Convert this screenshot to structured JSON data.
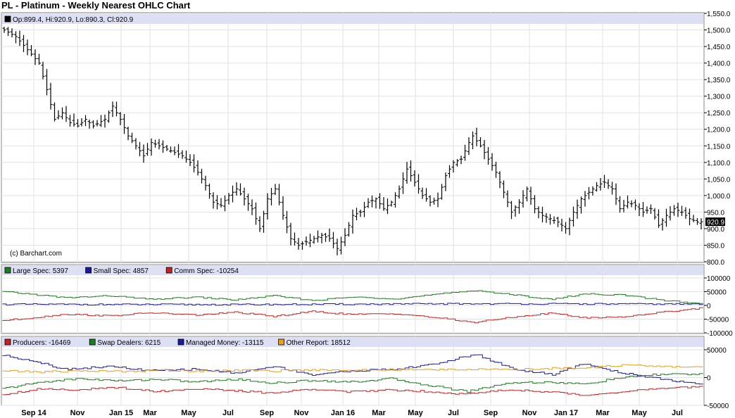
{
  "title": "PL - Platinum - Weekly Nearest OHLC Chart",
  "copyright": "(c) Barchart.com",
  "colors": {
    "price": "#000000",
    "large_spec": "#1e7d1e",
    "small_spec": "#1a1a9a",
    "comm_spec": "#cc1f1f",
    "producers": "#cc1f1f",
    "swap_dealers": "#1e7d1e",
    "managed_money": "#1a1a9a",
    "other_report": "#e8a020",
    "legend_bg": "#dde0f5"
  },
  "chart_data": [
    {
      "type": "ohlc",
      "panel": "price",
      "legend": "Op:899.4, Hi:920.9, Lo:890.3, Cl:920.9",
      "last_value_label": "920.9",
      "ylim": [
        800,
        1550
      ],
      "yticks": [
        "1,550.0",
        "1,500.0",
        "1,450.0",
        "1,400.0",
        "1,350.0",
        "1,300.0",
        "1,250.0",
        "1,200.0",
        "1,150.0",
        "1,100.0",
        "1,050.0",
        "1,000.0",
        "950.0",
        "900.0",
        "850.0",
        "800.0"
      ],
      "x_labels": [
        "Sep 14",
        "Nov",
        "Jan 15",
        "Mar",
        "May",
        "Jul",
        "Sep",
        "Nov",
        "Jan 16",
        "Mar",
        "May",
        "Jul",
        "Sep",
        "Nov",
        "Jan 17",
        "Mar",
        "May",
        "Jul"
      ],
      "close_anchors": [
        [
          0,
          1500
        ],
        [
          3,
          1480
        ],
        [
          6,
          1440
        ],
        [
          9,
          1400
        ],
        [
          11,
          1320
        ],
        [
          13,
          1230
        ],
        [
          15,
          1250
        ],
        [
          17,
          1220
        ],
        [
          19,
          1210
        ],
        [
          21,
          1230
        ],
        [
          23,
          1210
        ],
        [
          26,
          1230
        ],
        [
          28,
          1270
        ],
        [
          30,
          1230
        ],
        [
          32,
          1180
        ],
        [
          34,
          1150
        ],
        [
          36,
          1120
        ],
        [
          38,
          1160
        ],
        [
          40,
          1150
        ],
        [
          42,
          1140
        ],
        [
          44,
          1130
        ],
        [
          46,
          1120
        ],
        [
          48,
          1100
        ],
        [
          50,
          1070
        ],
        [
          52,
          1030
        ],
        [
          54,
          980
        ],
        [
          56,
          970
        ],
        [
          58,
          1000
        ],
        [
          60,
          1020
        ],
        [
          62,
          990
        ],
        [
          64,
          960
        ],
        [
          66,
          900
        ],
        [
          68,
          990
        ],
        [
          70,
          1020
        ],
        [
          72,
          940
        ],
        [
          74,
          870
        ],
        [
          76,
          850
        ],
        [
          78,
          860
        ],
        [
          80,
          870
        ],
        [
          82,
          880
        ],
        [
          84,
          870
        ],
        [
          86,
          840
        ],
        [
          88,
          880
        ],
        [
          90,
          940
        ],
        [
          92,
          950
        ],
        [
          94,
          980
        ],
        [
          96,
          990
        ],
        [
          98,
          960
        ],
        [
          100,
          980
        ],
        [
          102,
          1020
        ],
        [
          104,
          1080
        ],
        [
          106,
          1040
        ],
        [
          108,
          1000
        ],
        [
          110,
          980
        ],
        [
          112,
          990
        ],
        [
          114,
          1060
        ],
        [
          116,
          1100
        ],
        [
          118,
          1110
        ],
        [
          120,
          1160
        ],
        [
          121,
          1180
        ],
        [
          123,
          1150
        ],
        [
          125,
          1110
        ],
        [
          127,
          1070
        ],
        [
          129,
          1010
        ],
        [
          131,
          950
        ],
        [
          133,
          980
        ],
        [
          135,
          1020
        ],
        [
          137,
          960
        ],
        [
          139,
          940
        ],
        [
          141,
          930
        ],
        [
          143,
          920
        ],
        [
          145,
          900
        ],
        [
          147,
          950
        ],
        [
          149,
          990
        ],
        [
          151,
          1010
        ],
        [
          153,
          1030
        ],
        [
          155,
          1040
        ],
        [
          157,
          1020
        ],
        [
          159,
          960
        ],
        [
          161,
          980
        ],
        [
          163,
          970
        ],
        [
          165,
          950
        ],
        [
          167,
          960
        ],
        [
          169,
          910
        ],
        [
          171,
          940
        ],
        [
          173,
          960
        ],
        [
          175,
          950
        ],
        [
          177,
          930
        ],
        [
          179,
          920
        ],
        [
          180,
          920.9
        ]
      ],
      "n_bars": 181
    },
    {
      "type": "line",
      "panel": "cot-specs",
      "ylim": [
        -100000,
        100000
      ],
      "yticks": [
        "100000",
        "50000",
        "0",
        "-50000",
        "-100000"
      ],
      "series": [
        {
          "name": "Large Spec",
          "last_value": "5397",
          "anchors": [
            [
              0,
              50000
            ],
            [
              8,
              40000
            ],
            [
              16,
              28000
            ],
            [
              28,
              35000
            ],
            [
              38,
              22000
            ],
            [
              50,
              30000
            ],
            [
              60,
              20000
            ],
            [
              70,
              35000
            ],
            [
              80,
              18000
            ],
            [
              90,
              30000
            ],
            [
              102,
              25000
            ],
            [
              112,
              40000
            ],
            [
              122,
              55000
            ],
            [
              132,
              38000
            ],
            [
              142,
              22000
            ],
            [
              150,
              42000
            ],
            [
              160,
              38000
            ],
            [
              170,
              20000
            ],
            [
              180,
              5397
            ]
          ]
        },
        {
          "name": "Small Spec",
          "last_value": "4857",
          "anchors": [
            [
              0,
              4000
            ],
            [
              60,
              3000
            ],
            [
              120,
              6000
            ],
            [
              180,
              4857
            ]
          ]
        },
        {
          "name": "Comm Spec",
          "last_value": "-10254",
          "anchors": [
            [
              0,
              -55000
            ],
            [
              8,
              -45000
            ],
            [
              16,
              -32000
            ],
            [
              28,
              -38000
            ],
            [
              38,
              -27000
            ],
            [
              50,
              -35000
            ],
            [
              60,
              -25000
            ],
            [
              70,
              -40000
            ],
            [
              80,
              -22000
            ],
            [
              90,
              -33000
            ],
            [
              102,
              -30000
            ],
            [
              112,
              -45000
            ],
            [
              122,
              -62000
            ],
            [
              132,
              -42000
            ],
            [
              142,
              -28000
            ],
            [
              150,
              -45000
            ],
            [
              160,
              -42000
            ],
            [
              170,
              -25000
            ],
            [
              180,
              -10254
            ]
          ]
        }
      ]
    },
    {
      "type": "line",
      "panel": "cot-disaggregated",
      "ylim": [
        -50000,
        50000
      ],
      "yticks": [
        "50000",
        "0",
        "-50000"
      ],
      "series": [
        {
          "name": "Producers",
          "last_value": "-16469",
          "anchors": [
            [
              0,
              -30000
            ],
            [
              10,
              -20000
            ],
            [
              20,
              -22000
            ],
            [
              30,
              -18000
            ],
            [
              40,
              -25000
            ],
            [
              50,
              -20000
            ],
            [
              60,
              -24000
            ],
            [
              70,
              -28000
            ],
            [
              80,
              -20000
            ],
            [
              90,
              -26000
            ],
            [
              100,
              -22000
            ],
            [
              110,
              -25000
            ],
            [
              120,
              -30000
            ],
            [
              130,
              -22000
            ],
            [
              140,
              -25000
            ],
            [
              150,
              -32000
            ],
            [
              160,
              -25000
            ],
            [
              170,
              -20000
            ],
            [
              180,
              -16469
            ]
          ]
        },
        {
          "name": "Swap Dealers",
          "last_value": "6215",
          "anchors": [
            [
              0,
              -20000
            ],
            [
              10,
              -8000
            ],
            [
              20,
              -2000
            ],
            [
              30,
              -6000
            ],
            [
              40,
              -3000
            ],
            [
              50,
              -8000
            ],
            [
              60,
              -3000
            ],
            [
              70,
              -10000
            ],
            [
              80,
              -5000
            ],
            [
              90,
              -8000
            ],
            [
              100,
              -2000
            ],
            [
              110,
              -14000
            ],
            [
              120,
              -25000
            ],
            [
              130,
              -10000
            ],
            [
              140,
              -8000
            ],
            [
              150,
              -12000
            ],
            [
              160,
              0
            ],
            [
              170,
              6000
            ],
            [
              180,
              6215
            ]
          ]
        },
        {
          "name": "Managed Money",
          "last_value": "-13115",
          "anchors": [
            [
              0,
              40000
            ],
            [
              8,
              30000
            ],
            [
              16,
              15000
            ],
            [
              28,
              20000
            ],
            [
              38,
              12000
            ],
            [
              50,
              15000
            ],
            [
              60,
              8000
            ],
            [
              70,
              20000
            ],
            [
              80,
              5000
            ],
            [
              90,
              12000
            ],
            [
              102,
              15000
            ],
            [
              112,
              25000
            ],
            [
              122,
              42000
            ],
            [
              132,
              15000
            ],
            [
              142,
              5000
            ],
            [
              150,
              25000
            ],
            [
              160,
              8000
            ],
            [
              170,
              -2000
            ],
            [
              180,
              -13115
            ]
          ]
        },
        {
          "name": "Other Report",
          "last_value": "18512",
          "anchors": [
            [
              0,
              12000
            ],
            [
              10,
              10000
            ],
            [
              20,
              12000
            ],
            [
              30,
              11000
            ],
            [
              40,
              13000
            ],
            [
              50,
              12000
            ],
            [
              60,
              13000
            ],
            [
              70,
              12000
            ],
            [
              80,
              14000
            ],
            [
              90,
              13000
            ],
            [
              100,
              14000
            ],
            [
              110,
              14000
            ],
            [
              120,
              15000
            ],
            [
              130,
              14000
            ],
            [
              140,
              16000
            ],
            [
              150,
              18000
            ],
            [
              160,
              22000
            ],
            [
              170,
              20000
            ],
            [
              180,
              18512
            ]
          ]
        }
      ]
    }
  ]
}
